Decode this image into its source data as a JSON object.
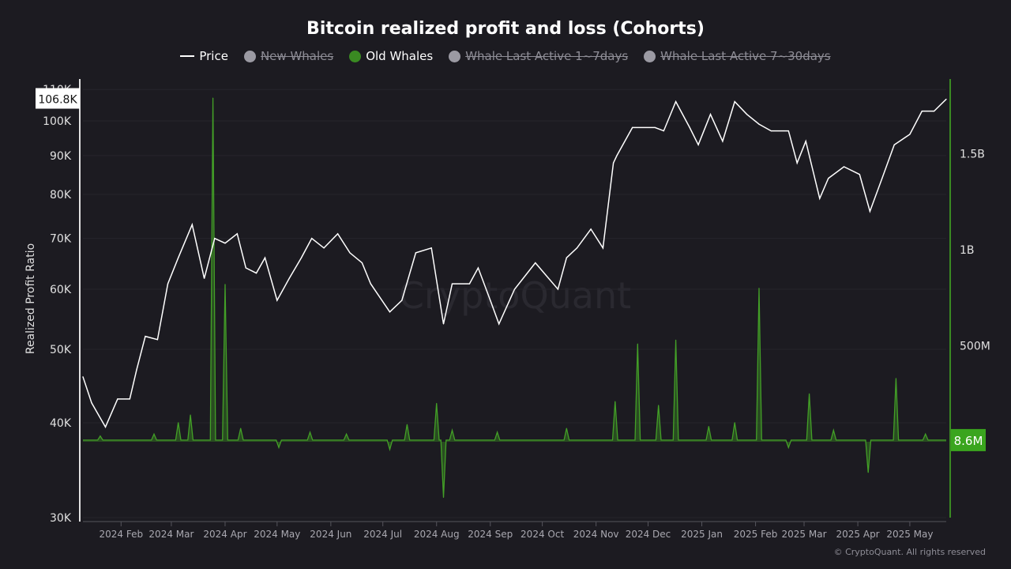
{
  "chart_data": {
    "type": "line",
    "title": "Bitcoin realized profit and loss (Cohorts)",
    "ylabel": "Realized Profit Ratio",
    "left_axis": {
      "scale": "log",
      "range": [
        30000,
        112000
      ],
      "ticks": [
        "30K",
        "40K",
        "50K",
        "60K",
        "70K",
        "80K",
        "90K",
        "100K",
        "110K"
      ],
      "tick_values": [
        30000,
        40000,
        50000,
        60000,
        70000,
        80000,
        90000,
        100000,
        110000
      ]
    },
    "right_axis": {
      "scale": "linear",
      "ticks": [
        "500M",
        "1B",
        "1.5B"
      ],
      "tick_values": [
        500000000,
        1000000000,
        1500000000
      ]
    },
    "x_ticks": [
      [
        "2024-02-01",
        "2024 Feb"
      ],
      [
        "2024-03-01",
        "2024 Mar"
      ],
      [
        "2024-04-01",
        "2024 Apr"
      ],
      [
        "2024-05-01",
        "2024 May"
      ],
      [
        "2024-06-01",
        "2024 Jun"
      ],
      [
        "2024-07-01",
        "2024 Jul"
      ],
      [
        "2024-08-01",
        "2024 Aug"
      ],
      [
        "2024-09-01",
        "2024 Sep"
      ],
      [
        "2024-10-01",
        "2024 Oct"
      ],
      [
        "2024-11-01",
        "2024 Nov"
      ],
      [
        "2024-12-01",
        "2024 Dec"
      ],
      [
        "2025-01-01",
        "2025 Jan"
      ],
      [
        "2025-02-01",
        "2025 Feb"
      ],
      [
        "2025-03-01",
        "2025 Mar"
      ],
      [
        "2025-04-01",
        "2025 Apr"
      ],
      [
        "2025-05-01",
        "2025 May"
      ]
    ],
    "x_range": [
      "2024-01-10",
      "2025-05-22"
    ],
    "legend": [
      {
        "name": "Price",
        "color": "#ffffff",
        "active": true,
        "marker": "line"
      },
      {
        "name": "New Whales",
        "color": "#9b9aa3",
        "active": false,
        "marker": "dot"
      },
      {
        "name": "Old Whales",
        "color": "#3a8a22",
        "active": true,
        "marker": "dot"
      },
      {
        "name": "Whale Last Active 1~7days",
        "color": "#9b9aa3",
        "active": false,
        "marker": "dot"
      },
      {
        "name": "Whale Last Active 7~30days",
        "color": "#9b9aa3",
        "active": false,
        "marker": "dot"
      }
    ],
    "series": [
      {
        "name": "Price",
        "axis": "left",
        "color": "#ffffff",
        "points": [
          [
            "2024-01-10",
            46000
          ],
          [
            "2024-01-15",
            42500
          ],
          [
            "2024-01-23",
            39500
          ],
          [
            "2024-01-30",
            43000
          ],
          [
            "2024-02-06",
            43000
          ],
          [
            "2024-02-10",
            47000
          ],
          [
            "2024-02-15",
            52000
          ],
          [
            "2024-02-22",
            51500
          ],
          [
            "2024-02-28",
            61000
          ],
          [
            "2024-03-05",
            66000
          ],
          [
            "2024-03-13",
            73000
          ],
          [
            "2024-03-20",
            62000
          ],
          [
            "2024-03-26",
            70000
          ],
          [
            "2024-04-01",
            69000
          ],
          [
            "2024-04-08",
            71000
          ],
          [
            "2024-04-13",
            64000
          ],
          [
            "2024-04-19",
            63000
          ],
          [
            "2024-04-24",
            66000
          ],
          [
            "2024-05-01",
            58000
          ],
          [
            "2024-05-08",
            62000
          ],
          [
            "2024-05-15",
            66000
          ],
          [
            "2024-05-21",
            70000
          ],
          [
            "2024-05-28",
            68000
          ],
          [
            "2024-06-05",
            71000
          ],
          [
            "2024-06-12",
            67000
          ],
          [
            "2024-06-19",
            65000
          ],
          [
            "2024-06-24",
            61000
          ],
          [
            "2024-07-05",
            56000
          ],
          [
            "2024-07-12",
            58000
          ],
          [
            "2024-07-20",
            67000
          ],
          [
            "2024-07-29",
            68000
          ],
          [
            "2024-08-05",
            54000
          ],
          [
            "2024-08-10",
            61000
          ],
          [
            "2024-08-20",
            61000
          ],
          [
            "2024-08-25",
            64000
          ],
          [
            "2024-09-01",
            58000
          ],
          [
            "2024-09-06",
            54000
          ],
          [
            "2024-09-15",
            60000
          ],
          [
            "2024-09-27",
            65000
          ],
          [
            "2024-10-10",
            60000
          ],
          [
            "2024-10-15",
            66000
          ],
          [
            "2024-10-21",
            68000
          ],
          [
            "2024-10-29",
            72000
          ],
          [
            "2024-11-05",
            68000
          ],
          [
            "2024-11-11",
            88000
          ],
          [
            "2024-11-13",
            90000
          ],
          [
            "2024-11-22",
            98000
          ],
          [
            "2024-12-05",
            98000
          ],
          [
            "2024-12-10",
            97000
          ],
          [
            "2024-12-17",
            106000
          ],
          [
            "2024-12-25",
            98000
          ],
          [
            "2024-12-30",
            93000
          ],
          [
            "2025-01-06",
            102000
          ],
          [
            "2025-01-13",
            94000
          ],
          [
            "2025-01-20",
            106000
          ],
          [
            "2025-01-27",
            102000
          ],
          [
            "2025-02-03",
            99000
          ],
          [
            "2025-02-10",
            97000
          ],
          [
            "2025-02-20",
            97000
          ],
          [
            "2025-02-25",
            88000
          ],
          [
            "2025-03-02",
            94000
          ],
          [
            "2025-03-10",
            79000
          ],
          [
            "2025-03-15",
            84000
          ],
          [
            "2025-03-24",
            87000
          ],
          [
            "2025-04-02",
            85000
          ],
          [
            "2025-04-08",
            76000
          ],
          [
            "2025-04-15",
            84000
          ],
          [
            "2025-04-22",
            93000
          ],
          [
            "2025-05-01",
            96000
          ],
          [
            "2025-05-08",
            103000
          ],
          [
            "2025-05-15",
            103000
          ],
          [
            "2025-05-22",
            106800
          ]
        ]
      },
      {
        "name": "Old Whales",
        "axis": "right",
        "color": "#3a8a22",
        "baseline": 8600000,
        "points": [
          [
            "2024-01-20",
            30000000
          ],
          [
            "2024-02-20",
            40000000
          ],
          [
            "2024-03-05",
            100000000
          ],
          [
            "2024-03-12",
            140000000
          ],
          [
            "2024-03-25",
            1790000000
          ],
          [
            "2024-04-01",
            820000000
          ],
          [
            "2024-04-10",
            70000000
          ],
          [
            "2024-05-02",
            -30000000
          ],
          [
            "2024-05-20",
            50000000
          ],
          [
            "2024-06-10",
            40000000
          ],
          [
            "2024-07-05",
            -40000000
          ],
          [
            "2024-07-15",
            90000000
          ],
          [
            "2024-08-01",
            200000000
          ],
          [
            "2024-08-05",
            -290000000
          ],
          [
            "2024-08-10",
            60000000
          ],
          [
            "2024-09-05",
            50000000
          ],
          [
            "2024-10-15",
            70000000
          ],
          [
            "2024-11-12",
            210000000
          ],
          [
            "2024-11-25",
            510000000
          ],
          [
            "2024-12-07",
            190000000
          ],
          [
            "2024-12-17",
            530000000
          ],
          [
            "2025-01-05",
            80000000
          ],
          [
            "2025-01-20",
            100000000
          ],
          [
            "2025-02-03",
            800000000
          ],
          [
            "2025-02-20",
            -30000000
          ],
          [
            "2025-03-04",
            250000000
          ],
          [
            "2025-03-18",
            60000000
          ],
          [
            "2025-04-07",
            -160000000
          ],
          [
            "2025-04-23",
            330000000
          ],
          [
            "2025-05-10",
            40000000
          ]
        ]
      }
    ],
    "last_value_labels": {
      "price": "106.8K",
      "old_whales": "8.6M"
    },
    "grid": true
  },
  "watermark": "CryptoQuant",
  "copyright": "© CryptoQuant. All rights reserved"
}
